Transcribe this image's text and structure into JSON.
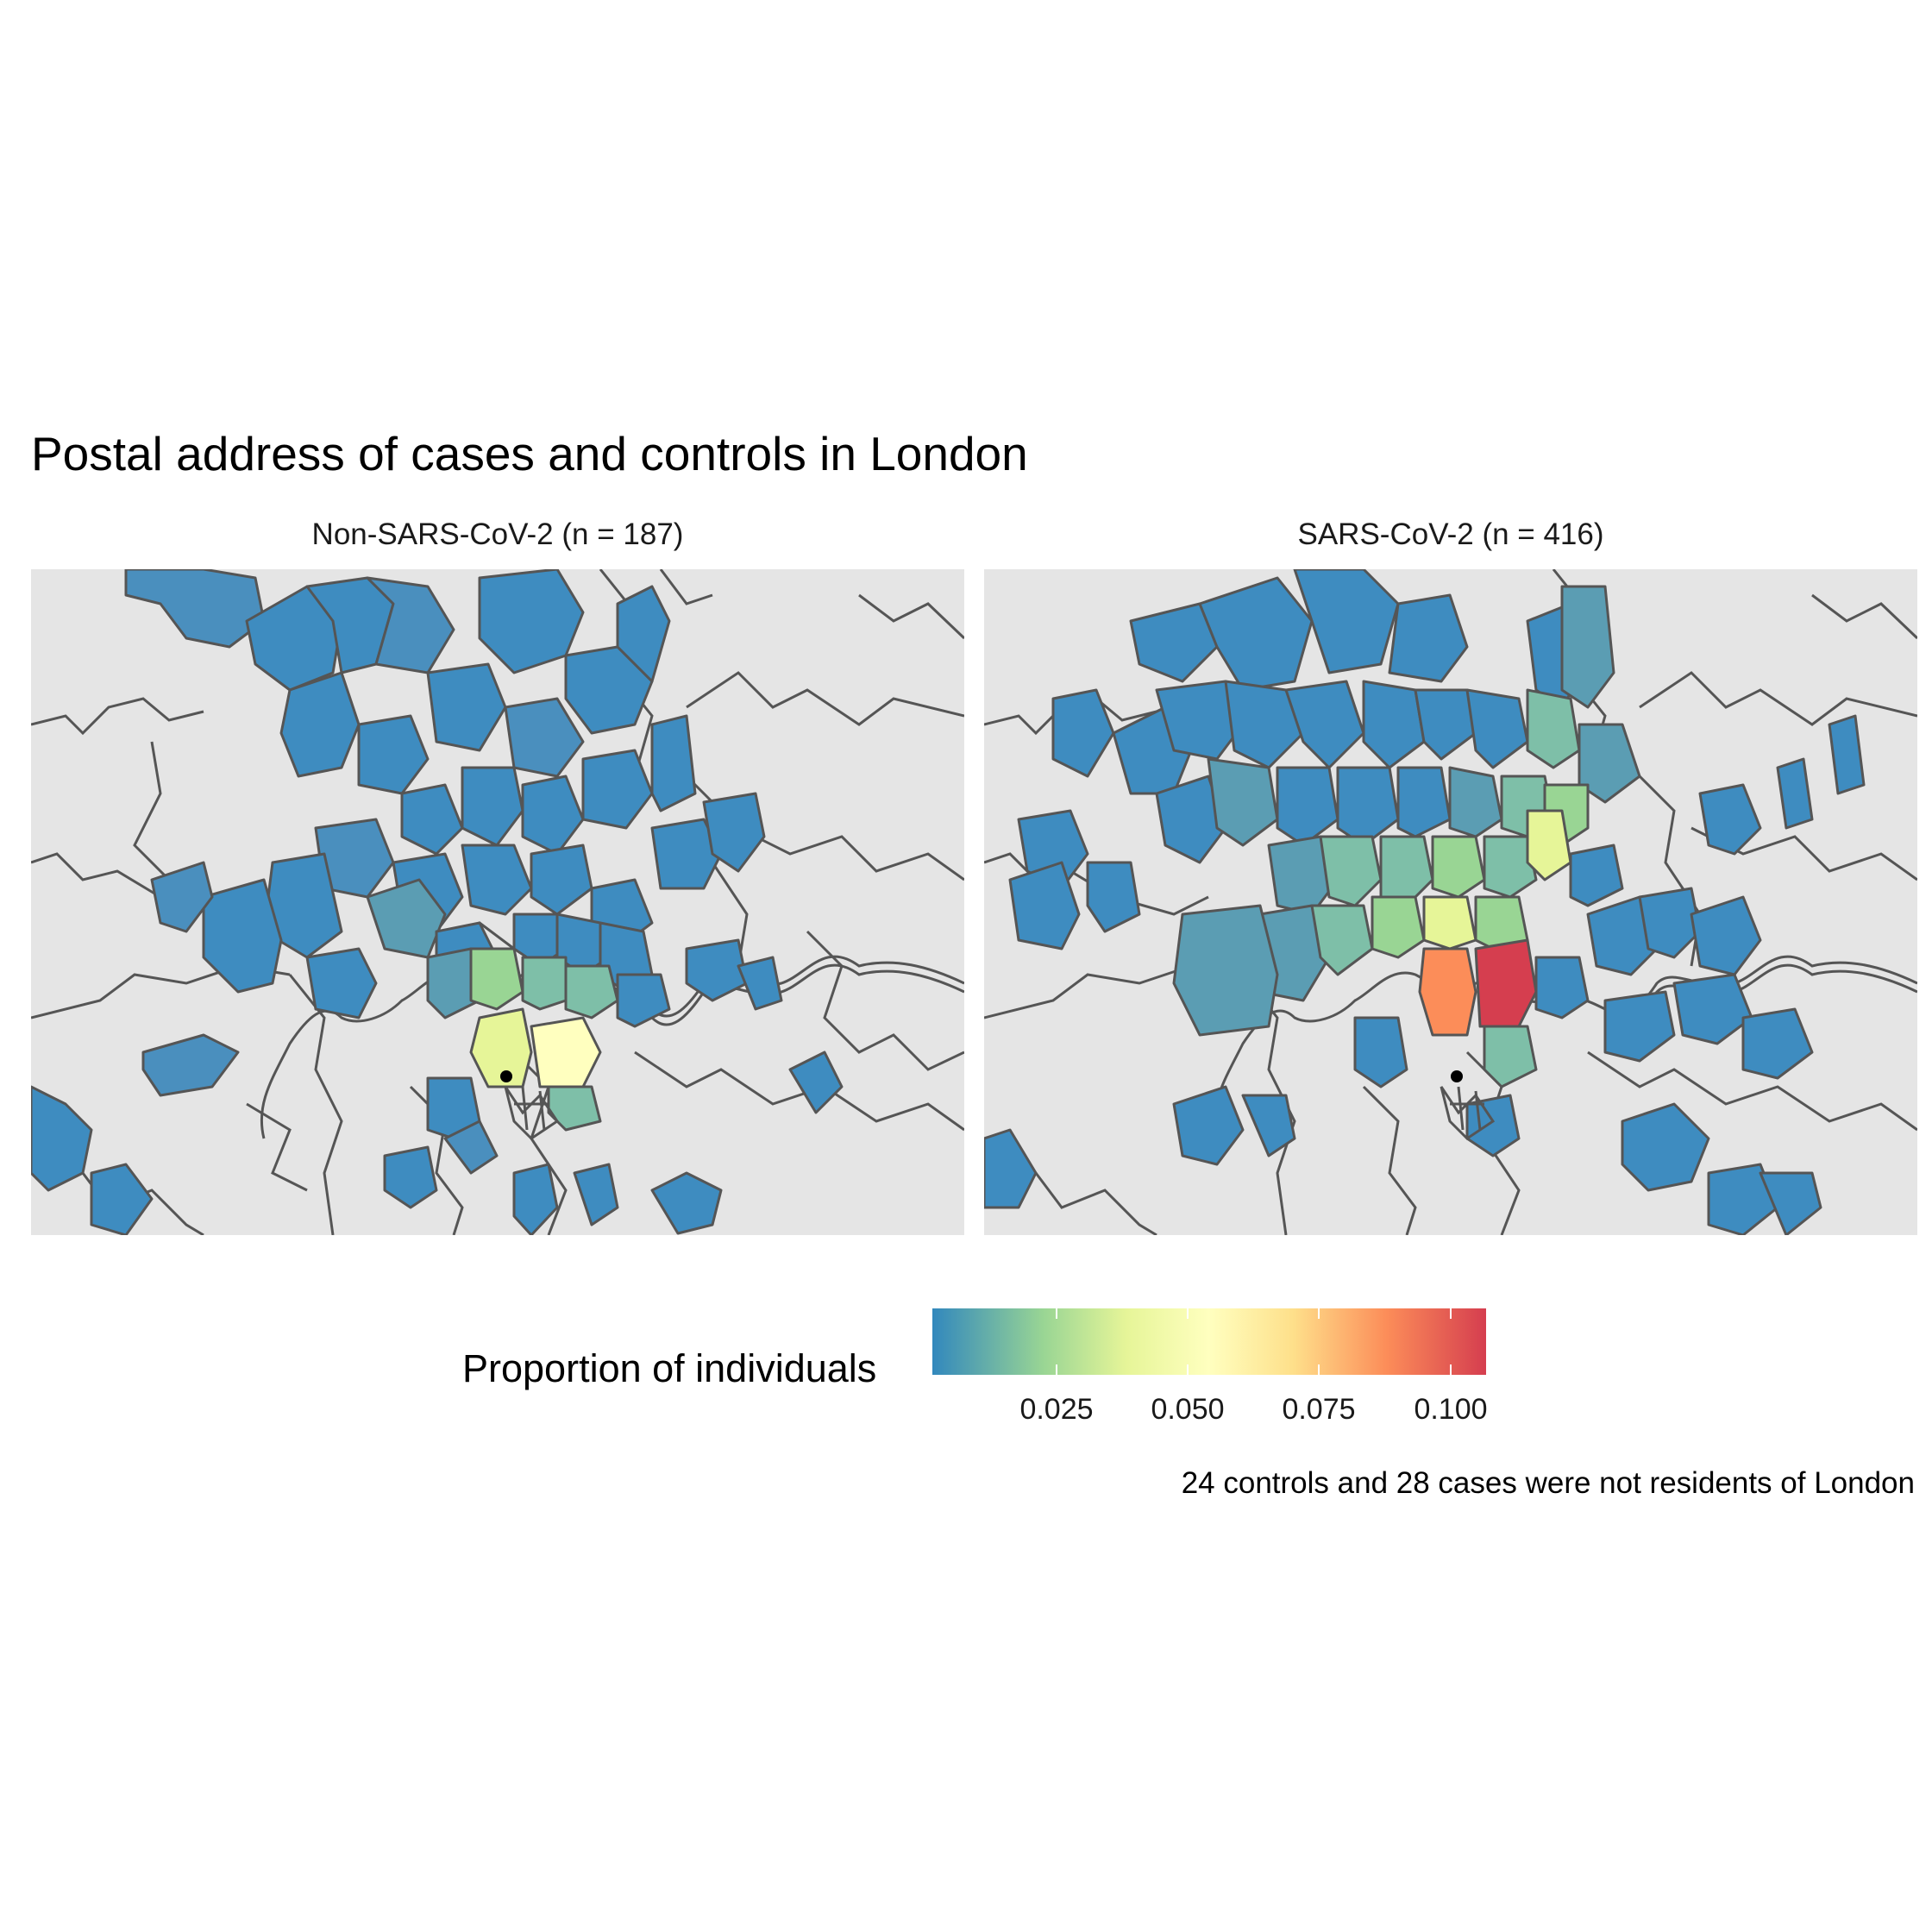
{
  "title": "Postal address of cases and controls in London",
  "panels": [
    {
      "label": "Non-SARS-CoV-2 (n = 187)"
    },
    {
      "label": "SARS-CoV-2 (n = 416)"
    }
  ],
  "legend": {
    "title": "Proportion of individuals",
    "ticks": [
      "0.025",
      "0.050",
      "0.075",
      "0.100"
    ],
    "palette": [
      "#3288bd",
      "#99d594",
      "#e6f598",
      "#ffffbf",
      "#fee08b",
      "#fc8d59",
      "#d53e4f"
    ]
  },
  "caption": "24 controls and 28 cases were not residents of London",
  "colors": {
    "background": "#e5e5e5",
    "boundary": "#555555",
    "low": "#3288bd",
    "high": "#d53e4f"
  }
}
